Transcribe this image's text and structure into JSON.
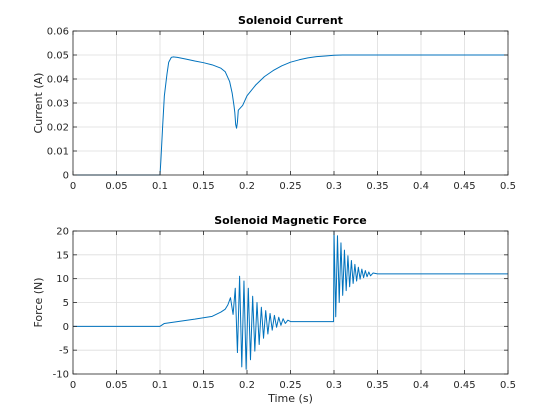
{
  "colors": {
    "series": "#0072bd",
    "grid": "#dedede",
    "axis": "#262626",
    "background": "#ffffff"
  },
  "chart_data": [
    {
      "type": "line",
      "title": "Solenoid Current",
      "xlabel": "",
      "ylabel": "Current (A)",
      "xlim": [
        0,
        0.5
      ],
      "ylim": [
        0,
        0.06
      ],
      "grid": true,
      "xticks": [
        0,
        0.05,
        0.1,
        0.15,
        0.2,
        0.25,
        0.3,
        0.35,
        0.4,
        0.45,
        0.5
      ],
      "xtick_labels": [
        "0",
        "0.05",
        "0.1",
        "0.15",
        "0.2",
        "0.25",
        "0.3",
        "0.35",
        "0.4",
        "0.45",
        "0.5"
      ],
      "yticks": [
        0,
        0.01,
        0.02,
        0.03,
        0.04,
        0.05,
        0.06
      ],
      "ytick_labels": [
        "0",
        "0.01",
        "0.02",
        "0.03",
        "0.04",
        "0.05",
        "0.06"
      ],
      "series": [
        {
          "x": [
            0,
            0.1,
            0.101,
            0.103,
            0.105,
            0.108,
            0.11,
            0.113,
            0.115,
            0.12,
            0.13,
            0.14,
            0.15,
            0.16,
            0.17,
            0.175,
            0.18,
            0.183,
            0.185,
            0.186,
            0.187,
            0.188,
            0.189,
            0.19,
            0.195,
            0.2,
            0.21,
            0.22,
            0.23,
            0.24,
            0.25,
            0.26,
            0.27,
            0.28,
            0.29,
            0.3,
            0.31,
            0.32,
            0.35,
            0.4,
            0.45,
            0.5
          ],
          "y": [
            0,
            0,
            0.006,
            0.02,
            0.033,
            0.042,
            0.047,
            0.049,
            0.0492,
            0.049,
            0.0483,
            0.0475,
            0.0468,
            0.0459,
            0.0445,
            0.043,
            0.039,
            0.034,
            0.029,
            0.026,
            0.021,
            0.0195,
            0.022,
            0.027,
            0.029,
            0.033,
            0.0375,
            0.041,
            0.0435,
            0.0455,
            0.047,
            0.048,
            0.0488,
            0.0493,
            0.0496,
            0.0499,
            0.05,
            0.05,
            0.05,
            0.05,
            0.05,
            0.05
          ]
        }
      ]
    },
    {
      "type": "line",
      "title": "Solenoid Magnetic Force",
      "xlabel": "Time (s)",
      "ylabel": "Force (N)",
      "xlim": [
        0,
        0.5
      ],
      "ylim": [
        -10,
        20
      ],
      "grid": true,
      "xticks": [
        0,
        0.05,
        0.1,
        0.15,
        0.2,
        0.25,
        0.3,
        0.35,
        0.4,
        0.45,
        0.5
      ],
      "xtick_labels": [
        "0",
        "0.05",
        "0.1",
        "0.15",
        "0.2",
        "0.25",
        "0.3",
        "0.35",
        "0.4",
        "0.45",
        "0.5"
      ],
      "yticks": [
        -10,
        -5,
        0,
        5,
        10,
        15,
        20
      ],
      "ytick_labels": [
        "-10",
        "-5",
        "0",
        "5",
        "10",
        "15",
        "20"
      ],
      "series": [
        {
          "x": [
            0,
            0.1,
            0.105,
            0.12,
            0.14,
            0.16,
            0.17,
            0.175,
            0.178,
            0.181,
            0.184,
            0.1865,
            0.189,
            0.1915,
            0.194,
            0.1965,
            0.199,
            0.2015,
            0.204,
            0.2065,
            0.209,
            0.2115,
            0.214,
            0.2165,
            0.219,
            0.2215,
            0.224,
            0.2265,
            0.229,
            0.2315,
            0.234,
            0.2365,
            0.239,
            0.2415,
            0.244,
            0.247,
            0.25,
            0.26,
            0.28,
            0.2995,
            0.3,
            0.302,
            0.304,
            0.306,
            0.308,
            0.31,
            0.312,
            0.314,
            0.316,
            0.318,
            0.32,
            0.322,
            0.324,
            0.326,
            0.328,
            0.33,
            0.332,
            0.334,
            0.336,
            0.338,
            0.34,
            0.342,
            0.345,
            0.35,
            0.36,
            0.4,
            0.45,
            0.5
          ],
          "y": [
            0,
            0,
            0.6,
            1.0,
            1.5,
            2.1,
            3.0,
            3.6,
            4.5,
            6.0,
            2.5,
            8.0,
            -5.5,
            10.5,
            -8.5,
            9.5,
            -9.0,
            8.0,
            -7.0,
            6.3,
            -5.2,
            5.0,
            -3.8,
            4.0,
            -2.5,
            3.3,
            -1.6,
            2.7,
            -0.8,
            2.3,
            -0.2,
            1.9,
            0.2,
            1.6,
            0.6,
            1.3,
            1.0,
            1.0,
            1.0,
            1.0,
            20.0,
            2.0,
            19.0,
            5.0,
            17.5,
            6.5,
            16.0,
            7.5,
            14.8,
            8.3,
            13.8,
            9.0,
            13.0,
            9.5,
            12.4,
            9.9,
            12.0,
            10.2,
            11.7,
            10.4,
            11.4,
            10.6,
            11.2,
            11.0,
            11.0,
            11.0,
            11.0,
            11.0
          ]
        }
      ]
    }
  ]
}
